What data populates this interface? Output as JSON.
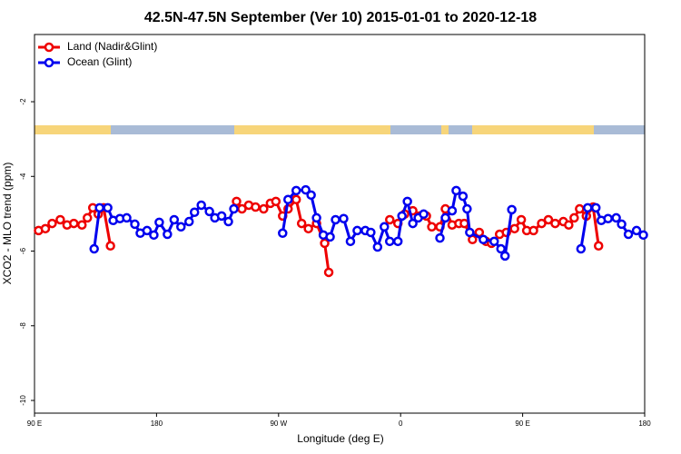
{
  "chart_data": {
    "type": "line",
    "title": "42.5N-47.5N September (Ver 10)   2015-01-01 to 2020-12-18",
    "x_label": "Longitude (deg E)",
    "y_label": "XCO2 - MLO trend (ppm)",
    "xlim": [
      90,
      540
    ],
    "xticks": [
      {
        "value": 90,
        "label": "90 E"
      },
      {
        "value": 180,
        "label": "180"
      },
      {
        "value": 270,
        "label": "90 W"
      },
      {
        "value": 360,
        "label": "0"
      },
      {
        "value": 450,
        "label": "90 E"
      },
      {
        "value": 540,
        "label": "180"
      }
    ],
    "ylim": [
      -10.34,
      -0.2
    ],
    "yticks": [
      -2,
      -4,
      -6,
      -8,
      -10
    ],
    "legend": "top-left",
    "series": [
      {
        "name": "Land (Nadir&Glint)",
        "color": "#ee0000",
        "x": [
          93,
          98,
          103,
          109,
          114,
          119,
          125,
          129,
          133,
          137,
          141,
          146,
          null,
          239,
          243,
          248,
          253,
          259,
          264,
          268,
          273,
          277,
          283,
          287,
          292,
          298,
          304,
          307,
          null,
          352,
          358,
          363,
          369,
          374,
          379,
          383,
          389,
          393,
          398,
          403,
          407,
          413,
          418,
          423,
          427,
          433,
          438,
          444,
          449,
          453,
          458,
          464,
          469,
          474,
          480,
          484,
          488,
          492,
          497,
          502,
          506
        ],
        "values": [
          -5.45,
          -5.4,
          -5.26,
          -5.16,
          -5.3,
          -5.26,
          -5.3,
          -5.11,
          -4.84,
          -5.01,
          -4.84,
          -5.86,
          null,
          -4.67,
          -4.87,
          -4.77,
          -4.82,
          -4.87,
          -4.72,
          -4.67,
          -5.06,
          -4.87,
          -4.62,
          -5.26,
          -5.4,
          -5.26,
          -5.79,
          -6.57,
          null,
          -5.16,
          -5.26,
          -5.01,
          -4.92,
          -5.06,
          -5.06,
          -5.35,
          -5.35,
          -4.87,
          -5.3,
          -5.26,
          -5.26,
          -5.69,
          -5.5,
          -5.74,
          -5.79,
          -5.55,
          -5.5,
          -5.4,
          -5.16,
          -5.45,
          -5.45,
          -5.26,
          -5.16,
          -5.26,
          -5.21,
          -5.3,
          -5.11,
          -4.87,
          -5.06,
          -4.82,
          -5.86
        ]
      },
      {
        "name": "Ocean (Glint)",
        "color": "#0000ee",
        "x": [
          134,
          138,
          144,
          148,
          153,
          158,
          164,
          168,
          173,
          178,
          182,
          188,
          193,
          198,
          204,
          208,
          213,
          219,
          223,
          228,
          233,
          237,
          null,
          273,
          277,
          283,
          290,
          294,
          298,
          303,
          308,
          312,
          318,
          323,
          328,
          334,
          338,
          343,
          348,
          352,
          358,
          361,
          365,
          369,
          373,
          377,
          null,
          389,
          393,
          398,
          401,
          406,
          409,
          411,
          421,
          429,
          434,
          437,
          442,
          null,
          493,
          498,
          504,
          508,
          513,
          519,
          523,
          528,
          534,
          539
        ],
        "values": [
          -5.94,
          -4.84,
          -4.84,
          -5.18,
          -5.13,
          -5.11,
          -5.28,
          -5.52,
          -5.45,
          -5.57,
          -5.23,
          -5.55,
          -5.16,
          -5.35,
          -5.21,
          -4.96,
          -4.77,
          -4.94,
          -5.11,
          -5.06,
          -5.21,
          -4.87,
          null,
          -5.52,
          -4.62,
          -4.38,
          -4.36,
          -4.5,
          -5.11,
          -5.57,
          -5.62,
          -5.16,
          -5.13,
          -5.74,
          -5.45,
          -5.45,
          -5.5,
          -5.89,
          -5.35,
          -5.74,
          -5.74,
          -5.06,
          -4.67,
          -5.26,
          -5.11,
          -5.01,
          null,
          -5.65,
          -5.11,
          -4.92,
          -4.38,
          -4.53,
          -4.87,
          -5.5,
          -5.69,
          -5.74,
          -5.94,
          -6.13,
          -4.89,
          null,
          -5.94,
          -4.84,
          -4.84,
          -5.18,
          -5.13,
          -5.11,
          -5.28,
          -5.55,
          -5.45,
          -5.57
        ]
      }
    ]
  }
}
